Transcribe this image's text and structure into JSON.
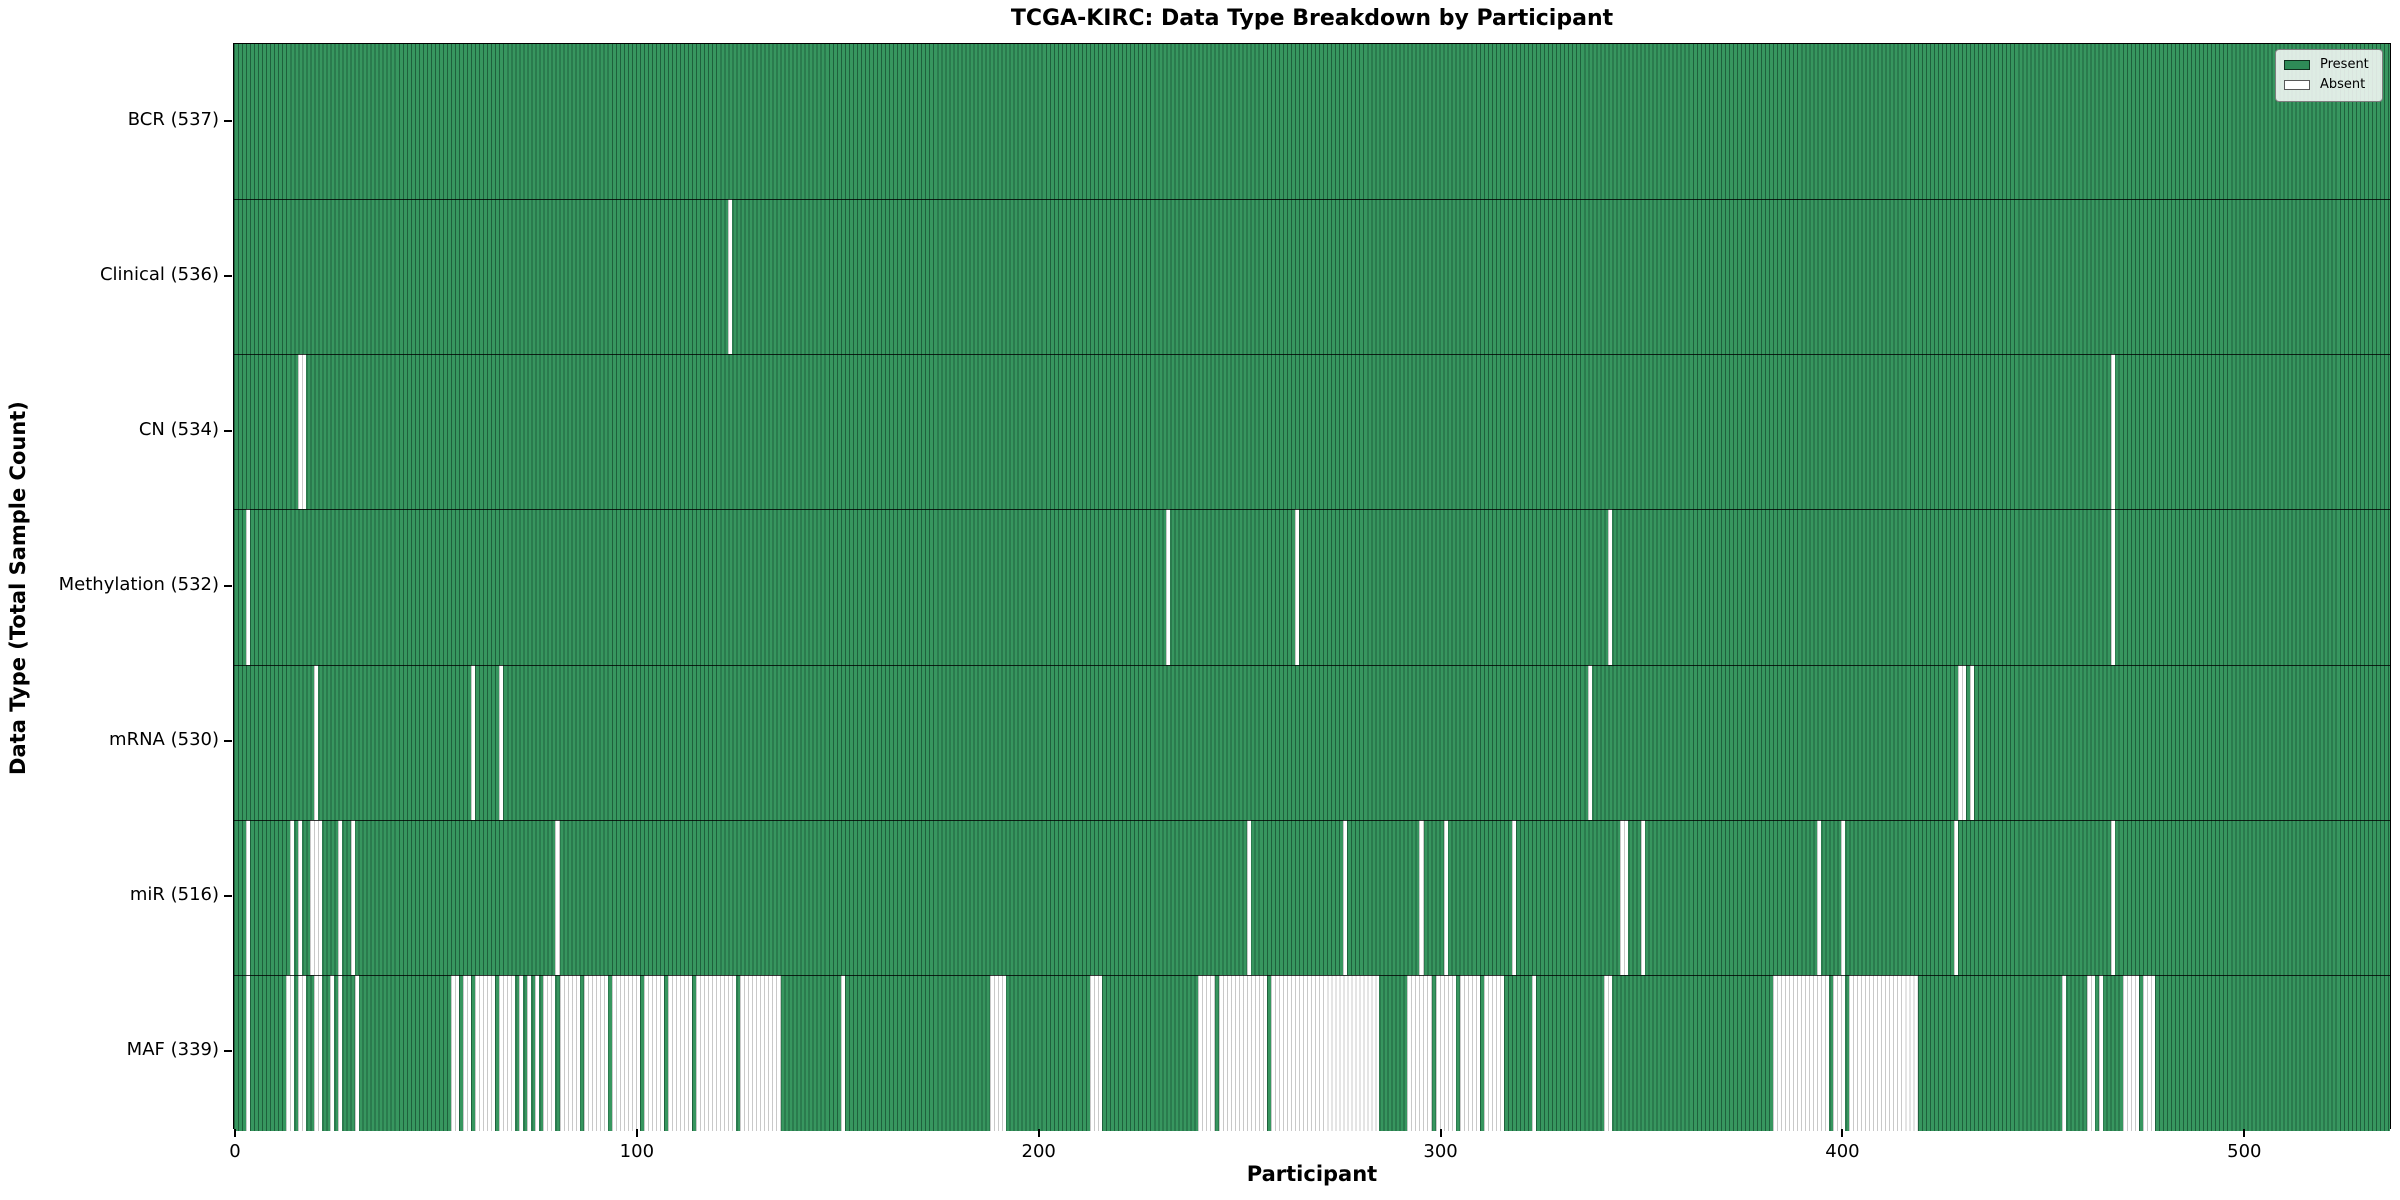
{
  "chart_data": {
    "type": "heatmap",
    "title": "TCGA-KIRC: Data Type Breakdown by Participant",
    "xlabel": "Participant",
    "ylabel": "Data Type (Total Sample Count)",
    "n_participants": 537,
    "x_ticks": [
      0,
      100,
      200,
      300,
      400,
      500
    ],
    "grid": false,
    "legend_position": "upper right",
    "legend": {
      "present_label": "Present",
      "absent_label": "Absent"
    },
    "colors": {
      "present": "#37965F",
      "present_edge": "#0A3420",
      "absent": "#FFFFFF",
      "legend_swatch_green": "#2E8B57"
    },
    "rows": [
      {
        "label": "BCR (537)",
        "name": "BCR",
        "present_count": 537,
        "absent_count": 0,
        "absent_runs": []
      },
      {
        "label": "Clinical (536)",
        "name": "Clinical",
        "present_count": 536,
        "absent_count": 1,
        "absent_runs": [
          [
            123,
            123
          ]
        ]
      },
      {
        "label": "CN (534)",
        "name": "CN",
        "present_count": 534,
        "absent_count": 3,
        "absent_runs": [
          [
            16,
            17
          ],
          [
            467,
            467
          ]
        ]
      },
      {
        "label": "Methylation (532)",
        "name": "Methylation",
        "present_count": 532,
        "absent_count": 5,
        "absent_runs": [
          [
            3,
            3
          ],
          [
            232,
            232
          ],
          [
            264,
            264
          ],
          [
            342,
            342
          ],
          [
            467,
            467
          ]
        ]
      },
      {
        "label": "mRNA (530)",
        "name": "mRNA",
        "present_count": 530,
        "absent_count": 7,
        "absent_runs": [
          [
            20,
            20
          ],
          [
            59,
            59
          ],
          [
            66,
            66
          ],
          [
            337,
            337
          ],
          [
            429,
            430
          ],
          [
            432,
            432
          ]
        ]
      },
      {
        "label": "miR (516)",
        "name": "miR",
        "present_count": 516,
        "absent_count": 21,
        "absent_runs": [
          [
            3,
            3
          ],
          [
            14,
            14
          ],
          [
            16,
            16
          ],
          [
            19,
            21
          ],
          [
            26,
            26
          ],
          [
            29,
            29
          ],
          [
            80,
            80
          ],
          [
            252,
            252
          ],
          [
            276,
            276
          ],
          [
            295,
            295
          ],
          [
            301,
            301
          ],
          [
            318,
            318
          ],
          [
            345,
            346
          ],
          [
            350,
            350
          ],
          [
            394,
            394
          ],
          [
            400,
            400
          ],
          [
            428,
            428
          ],
          [
            467,
            467
          ]
        ]
      },
      {
        "label": "MAF (339)",
        "name": "MAF",
        "present_count": 339,
        "absent_count": 198,
        "absent_runs": [
          [
            3,
            3
          ],
          [
            13,
            14
          ],
          [
            16,
            17
          ],
          [
            20,
            21
          ],
          [
            24,
            24
          ],
          [
            26,
            26
          ],
          [
            30,
            30
          ],
          [
            54,
            55
          ],
          [
            57,
            58
          ],
          [
            60,
            64
          ],
          [
            66,
            69
          ],
          [
            71,
            71
          ],
          [
            73,
            73
          ],
          [
            75,
            75
          ],
          [
            77,
            79
          ],
          [
            81,
            85
          ],
          [
            87,
            92
          ],
          [
            94,
            100
          ],
          [
            102,
            106
          ],
          [
            108,
            113
          ],
          [
            115,
            124
          ],
          [
            126,
            135
          ],
          [
            151,
            151
          ],
          [
            188,
            191
          ],
          [
            213,
            215
          ],
          [
            240,
            243
          ],
          [
            245,
            256
          ],
          [
            258,
            284
          ],
          [
            292,
            297
          ],
          [
            299,
            303
          ],
          [
            305,
            309
          ],
          [
            311,
            315
          ],
          [
            323,
            323
          ],
          [
            341,
            342
          ],
          [
            383,
            396
          ],
          [
            398,
            400
          ],
          [
            402,
            418
          ],
          [
            455,
            455
          ],
          [
            461,
            462
          ],
          [
            464,
            464
          ],
          [
            470,
            473
          ],
          [
            475,
            477
          ]
        ]
      }
    ]
  }
}
